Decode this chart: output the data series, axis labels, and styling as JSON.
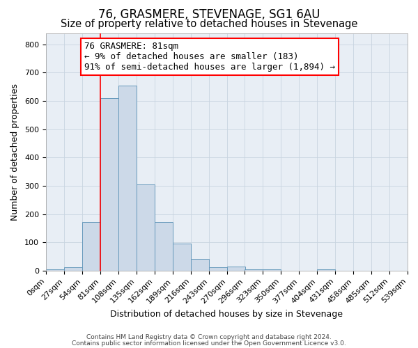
{
  "title": "76, GRASMERE, STEVENAGE, SG1 6AU",
  "subtitle": "Size of property relative to detached houses in Stevenage",
  "xlabel": "Distribution of detached houses by size in Stevenage",
  "ylabel": "Number of detached properties",
  "bar_color": "#ccd9e8",
  "bar_edge_color": "#6699bb",
  "red_line_x": 81,
  "annotation_text": "76 GRASMERE: 81sqm\n← 9% of detached houses are smaller (183)\n91% of semi-detached houses are larger (1,894) →",
  "footnote1": "Contains HM Land Registry data © Crown copyright and database right 2024.",
  "footnote2": "Contains public sector information licensed under the Open Government Licence v3.0.",
  "bins": [
    0,
    27,
    54,
    81,
    108,
    135,
    162,
    189,
    216,
    243,
    270,
    296,
    323,
    350,
    377,
    404,
    431,
    458,
    485,
    512,
    539
  ],
  "values": [
    5,
    12,
    172,
    610,
    655,
    305,
    172,
    97,
    42,
    12,
    15,
    5,
    5,
    0,
    0,
    5,
    0,
    0,
    0,
    0
  ],
  "ylim": [
    0,
    840
  ],
  "yticks": [
    0,
    100,
    200,
    300,
    400,
    500,
    600,
    700,
    800
  ],
  "fig_bg_color": "#ffffff",
  "plot_bg_color": "#e8eef5",
  "grid_color": "#c8d4e0",
  "title_fontsize": 12,
  "subtitle_fontsize": 10.5,
  "label_fontsize": 9,
  "tick_fontsize": 8,
  "footnote_fontsize": 6.5,
  "annotation_fontsize": 9
}
